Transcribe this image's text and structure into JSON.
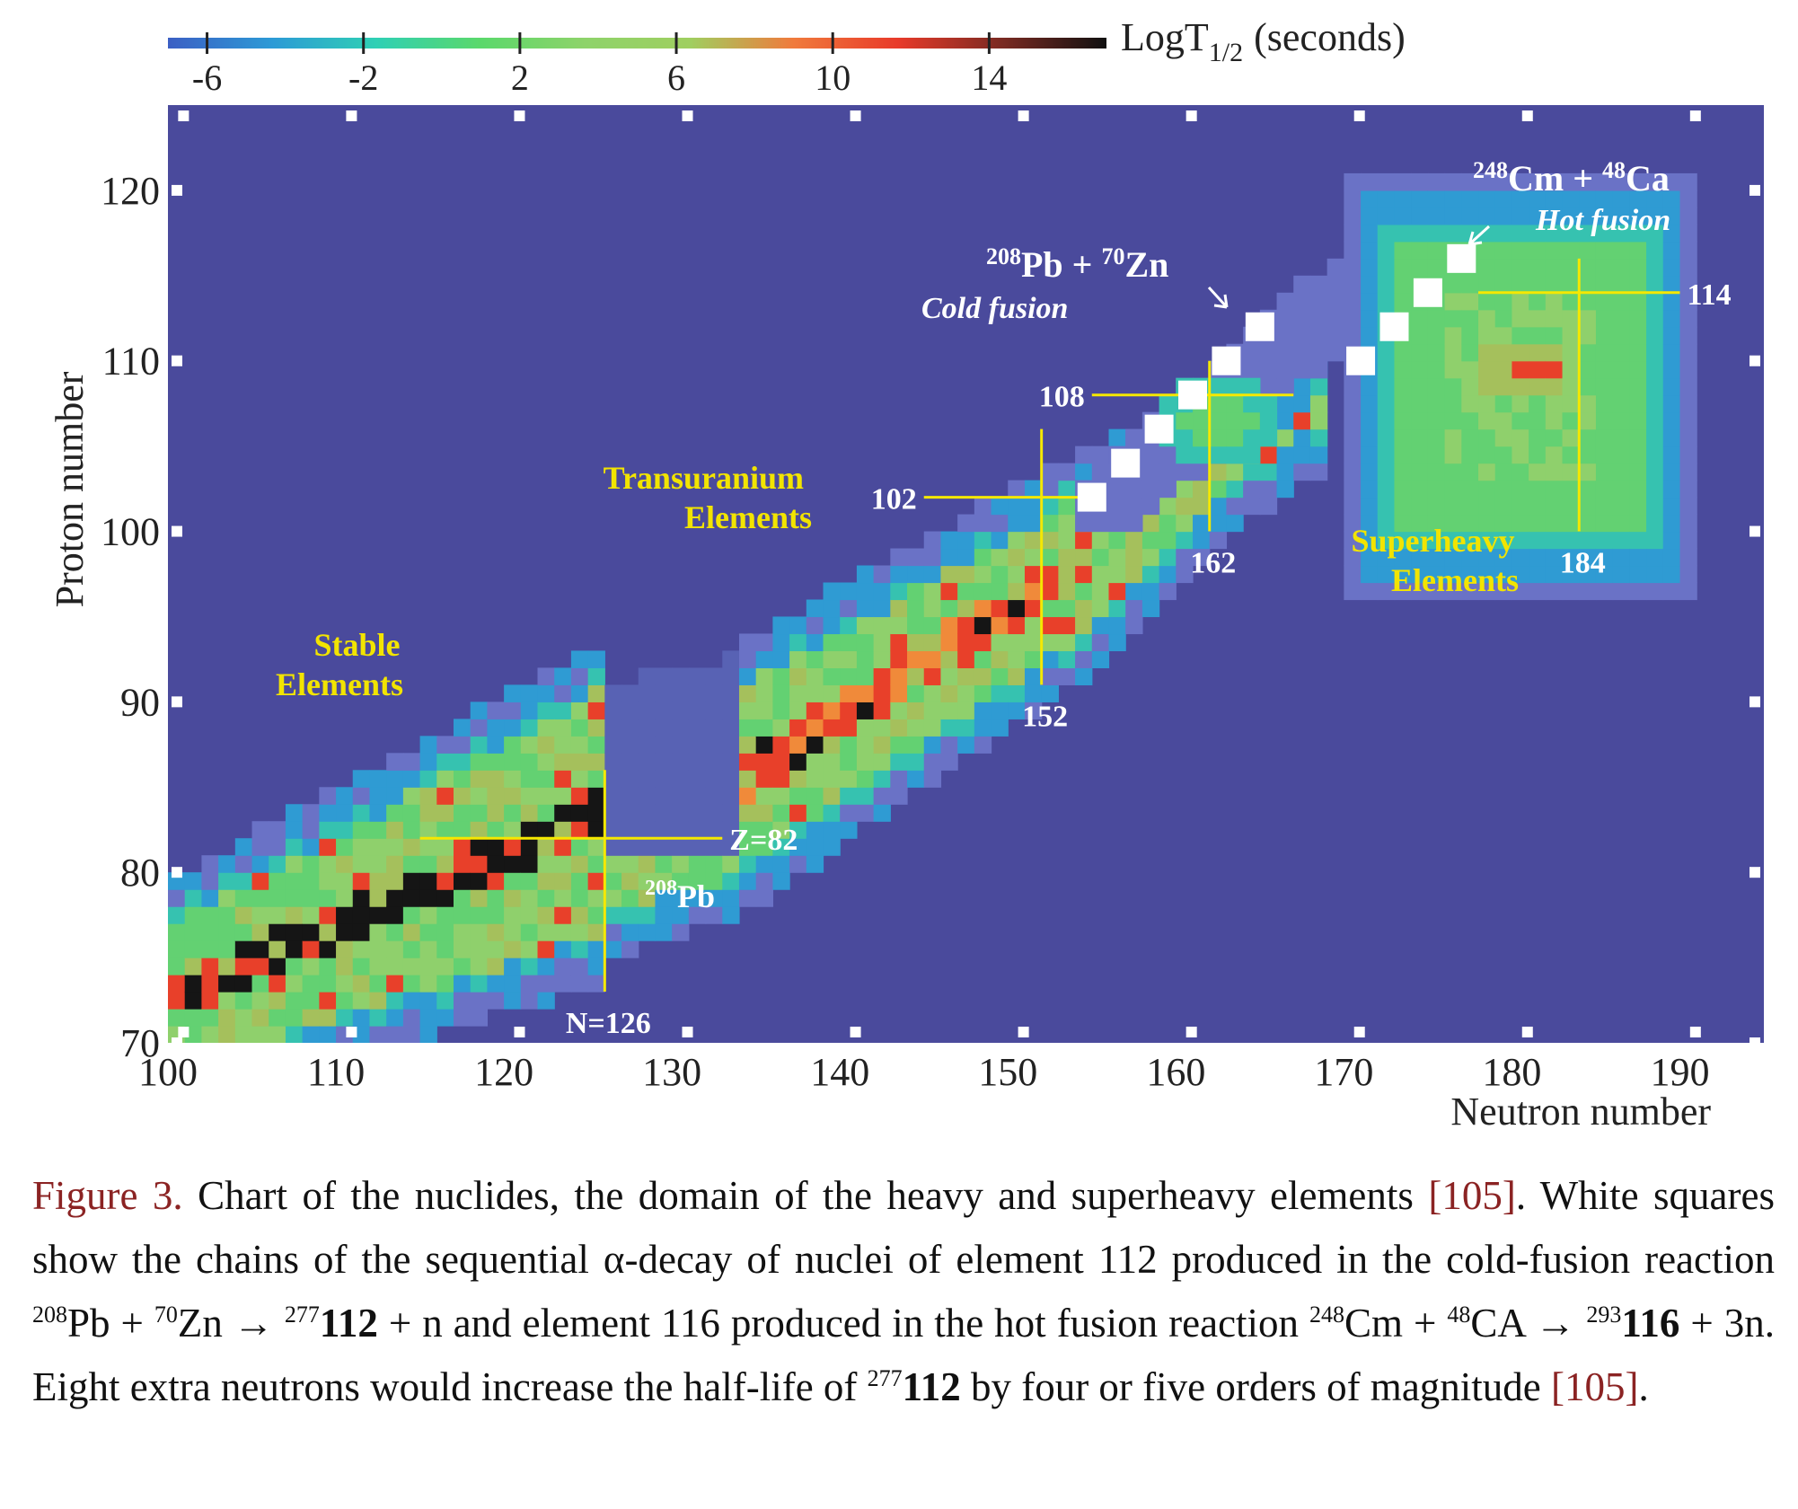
{
  "chart_data": {
    "type": "heatmap",
    "xlabel": "Neutron number",
    "ylabel": "Proton number",
    "xlim": [
      100,
      195
    ],
    "ylim": [
      70,
      125
    ],
    "x_ticks": [
      "100",
      "110",
      "120",
      "130",
      "140",
      "150",
      "160",
      "170",
      "180",
      "190"
    ],
    "y_ticks": [
      "70",
      "80",
      "90",
      "100",
      "110",
      "120"
    ],
    "colorbar": {
      "label_main": "LogT",
      "label_sub": "1/2",
      "label_unit": "(seconds)",
      "range": [
        -7,
        17
      ],
      "ticks": [
        "-6",
        "-2",
        "2",
        "6",
        "10",
        "14"
      ],
      "colors": [
        "#3b5fc4",
        "#2c9ad6",
        "#2fd0b4",
        "#5bd86b",
        "#8ed36a",
        "#9fcf60",
        "#f07a3c",
        "#e83a2a",
        "#7a2a22",
        "#101010"
      ]
    },
    "background_color": "#4a4a9c",
    "magic_lines": [
      {
        "label": "Z=82",
        "x0": 115,
        "x1": 133,
        "y": 82
      },
      {
        "label": "N=126",
        "x": 126,
        "y0": 73,
        "y1": 86
      },
      {
        "label": "102",
        "x0": 145,
        "x1": 155,
        "y": 102
      },
      {
        "label": "152",
        "x": 152,
        "y0": 91,
        "y1": 106
      },
      {
        "label": "108",
        "x0": 155,
        "x1": 167,
        "y": 108
      },
      {
        "label": "162",
        "x": 162,
        "y0": 100,
        "y1": 110
      },
      {
        "label": "114",
        "x0": 178,
        "x1": 190,
        "y": 114
      },
      {
        "label": "184",
        "x": 184,
        "y0": 100,
        "y1": 116
      }
    ],
    "alpha_chains": [
      {
        "name": "cold fusion",
        "points": [
          [
            155,
            102
          ],
          [
            157,
            104
          ],
          [
            159,
            106
          ],
          [
            161,
            108
          ],
          [
            163,
            110
          ],
          [
            165,
            112
          ]
        ]
      },
      {
        "name": "hot fusion",
        "points": [
          [
            171,
            110
          ],
          [
            173,
            112
          ],
          [
            175,
            114
          ],
          [
            177,
            116
          ]
        ]
      }
    ],
    "annotations": {
      "stable": [
        "Stable",
        "Elements"
      ],
      "transuranium": [
        "Transuranium",
        "Elements"
      ],
      "superheavy": [
        "Superheavy",
        "Elements"
      ],
      "pb208": {
        "mass": "208",
        "sym": "Pb"
      },
      "cold": {
        "m1": "208",
        "s1": "Pb + ",
        "m2": "70",
        "s2": "Zn",
        "sub": "Cold fusion"
      },
      "hot": {
        "m1": "248",
        "s1": "Cm + ",
        "m2": "48",
        "s2": "Ca",
        "sub": "Hot fusion"
      }
    }
  },
  "caption": {
    "label": "Figure 3.",
    "t1": " Chart of the nuclides, the domain of the heavy and superheavy elements ",
    "ref1": "[105]",
    "t2": ". White squares show the chains of the sequential α-decay of nuclei of element 112 produced in the cold-fusion reaction ",
    "sup1": "208",
    "t3": "Pb + ",
    "sup2": "70",
    "t4": "Zn → ",
    "sup3": "277",
    "b1": "112",
    "t5": " + n and element 116 produced in the hot fusion reaction ",
    "sup4": "248",
    "t6": "Cm + ",
    "sup5": "48",
    "t7": "CA → ",
    "sup6": "293",
    "b2": "116",
    "t8": " + 3n. Eight extra neutrons would increase the half-life of ",
    "sup7": "277",
    "b3": "112",
    "t9": " by four or five orders of magnitude ",
    "ref2": "[105]",
    "t10": "."
  }
}
